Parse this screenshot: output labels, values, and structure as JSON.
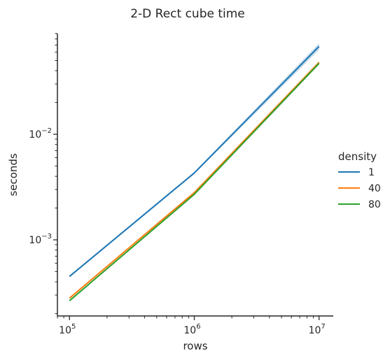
{
  "chart_data": {
    "type": "line",
    "title": "2-D Rect cube time",
    "xlabel": "rows",
    "ylabel": "seconds",
    "xscale": "log",
    "yscale": "log",
    "xlim": [
      80000,
      13000000
    ],
    "ylim": [
      0.00019,
      0.09
    ],
    "x_ticks": [
      {
        "value": 100000,
        "base": "10",
        "exp": "5"
      },
      {
        "value": 1000000,
        "base": "10",
        "exp": "6"
      },
      {
        "value": 10000000,
        "base": "10",
        "exp": "7"
      }
    ],
    "y_ticks": [
      {
        "value": 0.001,
        "base": "10",
        "exp": "−3"
      },
      {
        "value": 0.01,
        "base": "10",
        "exp": "−2"
      }
    ],
    "legend": {
      "title": "density",
      "placement": "right"
    },
    "grid": false,
    "x": [
      100000,
      1000000,
      10000000
    ],
    "series": [
      {
        "name": "1",
        "color": "#1f77b4",
        "values": [
          0.00045,
          0.0043,
          0.068
        ],
        "ci_low": [
          0.00044,
          0.0042,
          0.063
        ],
        "ci_high": [
          0.00046,
          0.0044,
          0.073
        ]
      },
      {
        "name": "40",
        "color": "#ff7f0e",
        "values": [
          0.00028,
          0.0028,
          0.048
        ],
        "ci_low": [
          0.000275,
          0.00275,
          0.0465
        ],
        "ci_high": [
          0.000285,
          0.00285,
          0.0495
        ]
      },
      {
        "name": "80",
        "color": "#2ca02c",
        "values": [
          0.000265,
          0.0027,
          0.047
        ],
        "ci_low": [
          0.00026,
          0.00265,
          0.0455
        ],
        "ci_high": [
          0.00027,
          0.00275,
          0.0485
        ]
      }
    ]
  }
}
